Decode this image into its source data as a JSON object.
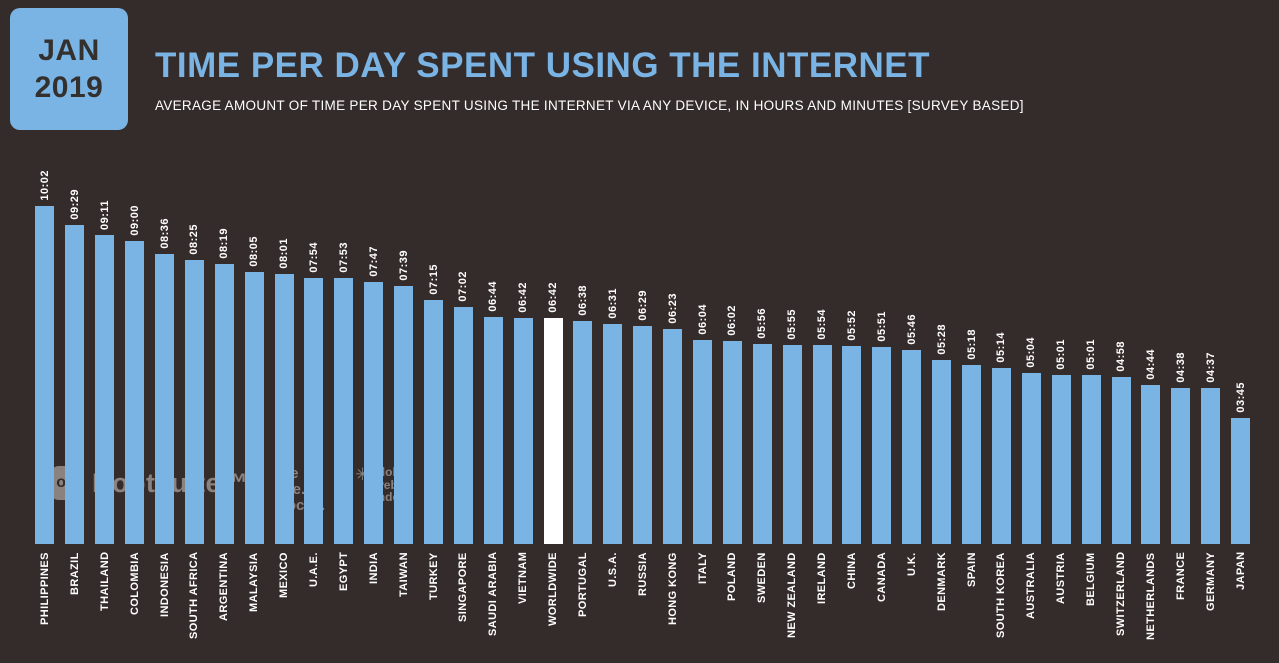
{
  "badge": {
    "line1": "JAN",
    "line2": "2019"
  },
  "header": {
    "title": "TIME PER DAY SPENT USING THE INTERNET",
    "subtitle": "AVERAGE AMOUNT OF TIME PER DAY SPENT USING THE INTERNET VIA ANY DEVICE, IN HOURS AND MINUTES [SURVEY BASED]"
  },
  "colors": {
    "background": "#342c2a",
    "accent_blue": "#7ab4e5",
    "highlight_white": "#ffffff",
    "label_text": "#ffffff"
  },
  "logos": {
    "hootsuite": {
      "icon": "owl-icon",
      "text": "Hootsuite™"
    },
    "we_are_social": {
      "lines": [
        "we",
        "are.",
        "social."
      ]
    },
    "globalwebindex": {
      "icon": "flower-icon",
      "lines": [
        "global",
        "web",
        "index"
      ]
    }
  },
  "chart_data": {
    "type": "bar",
    "title": "TIME PER DAY SPENT USING THE INTERNET",
    "subtitle": "AVERAGE AMOUNT OF TIME PER DAY SPENT USING THE INTERNET VIA ANY DEVICE, IN HOURS AND MINUTES [SURVEY BASED]",
    "value_unit": "hours:minutes",
    "grid": false,
    "legend": "none",
    "highlight_category": "WORLDWIDE",
    "categories": [
      "PHILIPPINES",
      "BRAZIL",
      "THAILAND",
      "COLOMBIA",
      "INDONESIA",
      "SOUTH AFRICA",
      "ARGENTINA",
      "MALAYSIA",
      "MEXICO",
      "U.A.E.",
      "EGYPT",
      "INDIA",
      "TAIWAN",
      "TURKEY",
      "SINGAPORE",
      "SAUDI ARABIA",
      "VIETNAM",
      "WORLDWIDE",
      "PORTUGAL",
      "U.S.A.",
      "RUSSIA",
      "HONG KONG",
      "ITALY",
      "POLAND",
      "SWEDEN",
      "NEW ZEALAND",
      "IRELAND",
      "CHINA",
      "CANADA",
      "U.K.",
      "DENMARK",
      "SPAIN",
      "SOUTH KOREA",
      "AUSTRALIA",
      "AUSTRIA",
      "BELGIUM",
      "SWITZERLAND",
      "NETHERLANDS",
      "FRANCE",
      "GERMANY",
      "JAPAN"
    ],
    "values": [
      "10:02",
      "09:29",
      "09:11",
      "09:00",
      "08:36",
      "08:25",
      "08:19",
      "08:05",
      "08:01",
      "07:54",
      "07:53",
      "07:47",
      "07:39",
      "07:15",
      "07:02",
      "06:44",
      "06:42",
      "06:42",
      "06:38",
      "06:31",
      "06:29",
      "06:23",
      "06:04",
      "06:02",
      "05:56",
      "05:55",
      "05:54",
      "05:52",
      "05:51",
      "05:46",
      "05:28",
      "05:18",
      "05:14",
      "05:04",
      "05:01",
      "05:01",
      "04:58",
      "04:44",
      "04:38",
      "04:37",
      "03:45"
    ]
  }
}
